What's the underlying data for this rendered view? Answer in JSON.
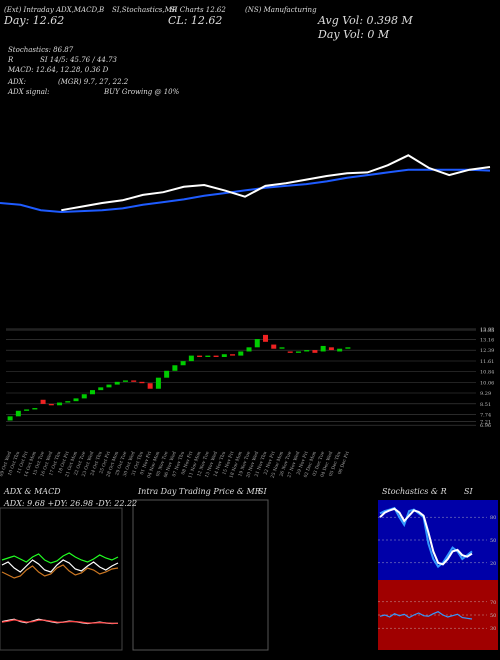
{
  "header": {
    "line1": "(Ext) Intraday ADX,MACD,B",
    "line2": "SI,Stochastics,MR",
    "line3": "SI Charts 12.62",
    "line4": "(NS) Manufacturing",
    "close": "CL: 12.62",
    "day": "Day: 12.62",
    "avg_vol": "Avg Vol: 0.398  M",
    "day_vol": "Day Vol: 0  M",
    "stoch": "Stochastics: 86.87",
    "rsi_a": "R",
    "rsi_b": "SI 14/5: 45.76 / 44.73",
    "macd": "MACD: 12.64, 12.28, 0.36  D",
    "adx_a": "ADX:",
    "adx_b": "(MGR) 9.7, 27, 22.2",
    "signal_a": "ADX  signal:",
    "signal_b": "BUY Growing @ 10%"
  },
  "intraday": {
    "title": "Intra  Day Trading Price  & MR",
    "title_end": "SI"
  },
  "chart_data": [
    {
      "type": "candlestick",
      "categories": [
        "09 Oct Wed",
        "10 Oct Thu",
        "11 Oct Fri",
        "14 Oct Mon",
        "15 Oct Tue",
        "16 Oct Wed",
        "17 Oct Thu",
        "18 Oct Fri",
        "21 Oct Mon",
        "22 Oct Tue",
        "23 Oct Wed",
        "24 Oct Thu",
        "25 Oct Fri",
        "28 Oct Mon",
        "29 Oct Tue",
        "30 Oct Wed",
        "31 Oct Thu",
        "01 Nov Fri",
        "04 Nov Mon",
        "05 Nov Tue",
        "06 Nov Wed",
        "07 Nov Thu",
        "08 Nov Fri",
        "11 Nov Mon",
        "12 Nov Tue",
        "13 Nov Wed",
        "14 Nov Thu",
        "15 Nov Fri",
        "18 Nov Mon",
        "19 Nov Tue",
        "20 Nov Wed",
        "21 Nov Thu",
        "22 Nov Fri",
        "25 Nov Mon",
        "26 Nov Tue",
        "27 Nov Wed",
        "29 Nov Fri",
        "02 Dec Mon",
        "03 Dec Tue",
        "04 Dec Wed",
        "05 Dec Thu",
        "06 Dec Fri"
      ],
      "open": [
        7.3,
        7.6,
        8.0,
        8.1,
        8.8,
        8.5,
        8.4,
        8.6,
        8.7,
        8.9,
        9.2,
        9.5,
        9.7,
        9.9,
        10.1,
        10.2,
        10.1,
        10.0,
        9.6,
        10.4,
        10.9,
        11.3,
        11.6,
        12.0,
        11.9,
        12.0,
        11.9,
        12.1,
        12.0,
        12.3,
        12.6,
        13.5,
        12.8,
        12.5,
        12.3,
        12.2,
        12.3,
        12.4,
        12.3,
        12.6,
        12.3,
        12.5
      ],
      "close": [
        7.6,
        8.0,
        8.1,
        8.2,
        8.5,
        8.4,
        8.6,
        8.7,
        8.9,
        9.2,
        9.5,
        9.7,
        9.9,
        10.1,
        10.2,
        10.1,
        10.0,
        9.6,
        10.4,
        10.9,
        11.3,
        11.6,
        12.0,
        11.9,
        12.0,
        11.9,
        12.1,
        12.0,
        12.3,
        12.6,
        13.2,
        13.0,
        12.5,
        12.6,
        12.2,
        12.3,
        12.4,
        12.2,
        12.7,
        12.4,
        12.5,
        12.6
      ],
      "up_color": "#00cc00",
      "down_color": "#ee2222",
      "ylim": [
        6.9,
        14.0
      ],
      "yticks": [
        13.93,
        13.85,
        13.16,
        12.39,
        11.61,
        10.84,
        10.06,
        9.29,
        8.51,
        7.74,
        7.21,
        6.96
      ],
      "grid": true
    },
    {
      "type": "line",
      "ylim": [
        0,
        100
      ],
      "series": [
        {
          "color": "#1e5bff",
          "values": [
            30,
            28,
            22,
            20,
            21,
            22,
            24,
            28,
            31,
            34,
            38,
            41,
            44,
            47,
            49,
            51,
            54,
            58,
            61,
            64,
            67,
            67,
            67,
            67,
            66
          ]
        },
        {
          "color": "#ffffff",
          "values": [
            null,
            null,
            null,
            22,
            26,
            30,
            33,
            39,
            42,
            48,
            50,
            44,
            37,
            49,
            52,
            56,
            60,
            63,
            64,
            72,
            83,
            69,
            61,
            67,
            70
          ]
        }
      ]
    },
    {
      "type": "line",
      "title": "ADX  & MACD",
      "subtitle": "ADX: 9.68  +DY: 26.98  -DY: 22.22",
      "ylim": [
        0,
        60
      ],
      "series": [
        {
          "color": "#22ff22",
          "values": [
            30,
            32,
            34,
            31,
            28,
            33,
            36,
            30,
            27,
            29,
            34,
            37,
            33,
            30,
            28,
            31,
            35,
            32,
            30,
            33
          ]
        },
        {
          "color": "#cc7722",
          "values": [
            18,
            15,
            12,
            14,
            20,
            24,
            18,
            14,
            16,
            22,
            25,
            19,
            15,
            17,
            22,
            20,
            16,
            18,
            21,
            22
          ]
        },
        {
          "color": "#ffffff",
          "values": [
            25,
            28,
            22,
            18,
            24,
            30,
            26,
            20,
            18,
            25,
            30,
            27,
            21,
            19,
            24,
            28,
            23,
            20,
            24,
            27
          ]
        }
      ]
    },
    {
      "type": "line",
      "ylim": [
        -1,
        1
      ],
      "series": [
        {
          "color": "#ffffff",
          "values": [
            0.1,
            0.15,
            0.2,
            0.1,
            0.05,
            0.12,
            0.2,
            0.15,
            0.1,
            0.05,
            0.08,
            0.12,
            0.1,
            0.06,
            0.02,
            0.05,
            0.08,
            0.04,
            0.02,
            0.03
          ]
        },
        {
          "color": "#ff4444",
          "values": [
            0.08,
            0.12,
            0.17,
            0.13,
            0.08,
            0.1,
            0.16,
            0.16,
            0.12,
            0.08,
            0.07,
            0.1,
            0.1,
            0.08,
            0.04,
            0.04,
            0.06,
            0.05,
            0.03,
            0.03
          ]
        }
      ]
    },
    {
      "type": "line",
      "title": "Stochastics & R",
      "title_end": "SI",
      "ylim": [
        0,
        100
      ],
      "yticks": [
        20,
        50,
        80
      ],
      "series": [
        {
          "color": "#3399ff",
          "values": [
            85,
            88,
            90,
            92,
            80,
            70,
            88,
            90,
            85,
            80,
            45,
            25,
            15,
            20,
            30,
            40,
            35,
            25,
            30,
            35
          ]
        },
        {
          "color": "#ffffff",
          "values": [
            80,
            86,
            89,
            91,
            86,
            75,
            82,
            89,
            87,
            82,
            60,
            35,
            20,
            18,
            25,
            35,
            37,
            30,
            28,
            32
          ]
        }
      ]
    },
    {
      "type": "line",
      "ylim": [
        0,
        100
      ],
      "yticks": [
        30,
        50,
        70
      ],
      "series": [
        {
          "color": "#3399ff",
          "values": [
            48,
            50,
            47,
            52,
            49,
            51,
            46,
            50,
            53,
            49,
            48,
            52,
            55,
            50,
            47,
            49,
            51,
            46,
            45,
            44
          ]
        }
      ]
    }
  ]
}
